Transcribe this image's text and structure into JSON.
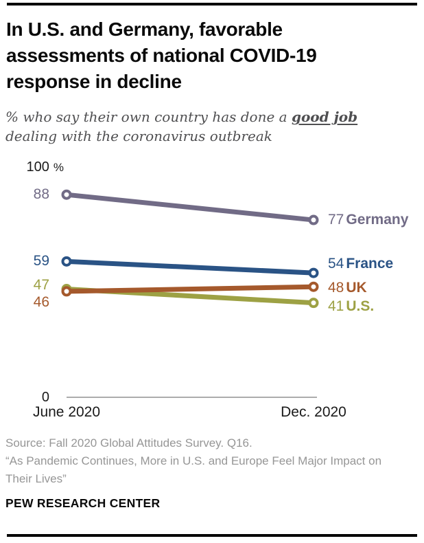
{
  "header": {
    "title": "In U.S. and Germany, favorable assessments of national COVID-19 response in decline",
    "subtitle_line1_prefix": "% who say their own country has done a ",
    "subtitle_emphasis": "good job",
    "subtitle_line2": "dealing with the coronavirus outbreak"
  },
  "chart_data": {
    "type": "line",
    "x": [
      "June 2020",
      "Dec. 2020"
    ],
    "series": [
      {
        "name": "Germany",
        "values": [
          88,
          77
        ],
        "color": "#716b86",
        "left_label_dy": 0,
        "right_label_dy": 0
      },
      {
        "name": "France",
        "values": [
          59,
          54
        ],
        "color": "#2a5385",
        "left_label_dy": 0,
        "right_label_dy": -13
      },
      {
        "name": "U.S.",
        "values": [
          47,
          41
        ],
        "color": "#9da144",
        "left_label_dy": -6,
        "right_label_dy": 5
      },
      {
        "name": "UK",
        "values": [
          46,
          48
        ],
        "color": "#a5592c",
        "left_label_dy": 16,
        "right_label_dy": 2
      }
    ],
    "ylim": [
      0,
      100
    ],
    "y_top_label": "100",
    "y_top_suffix": "%",
    "y_bottom_label": "0",
    "grid": false,
    "legend": "end-of-line-labels",
    "axis_color": "#909090"
  },
  "footer": {
    "source_line1": "Source: Fall 2020 Global Attitudes Survey. Q16.",
    "source_line2": "“As Pandemic Continues, More in U.S. and Europe Feel Major Impact on Their Lives”",
    "brand": "PEW RESEARCH CENTER"
  }
}
